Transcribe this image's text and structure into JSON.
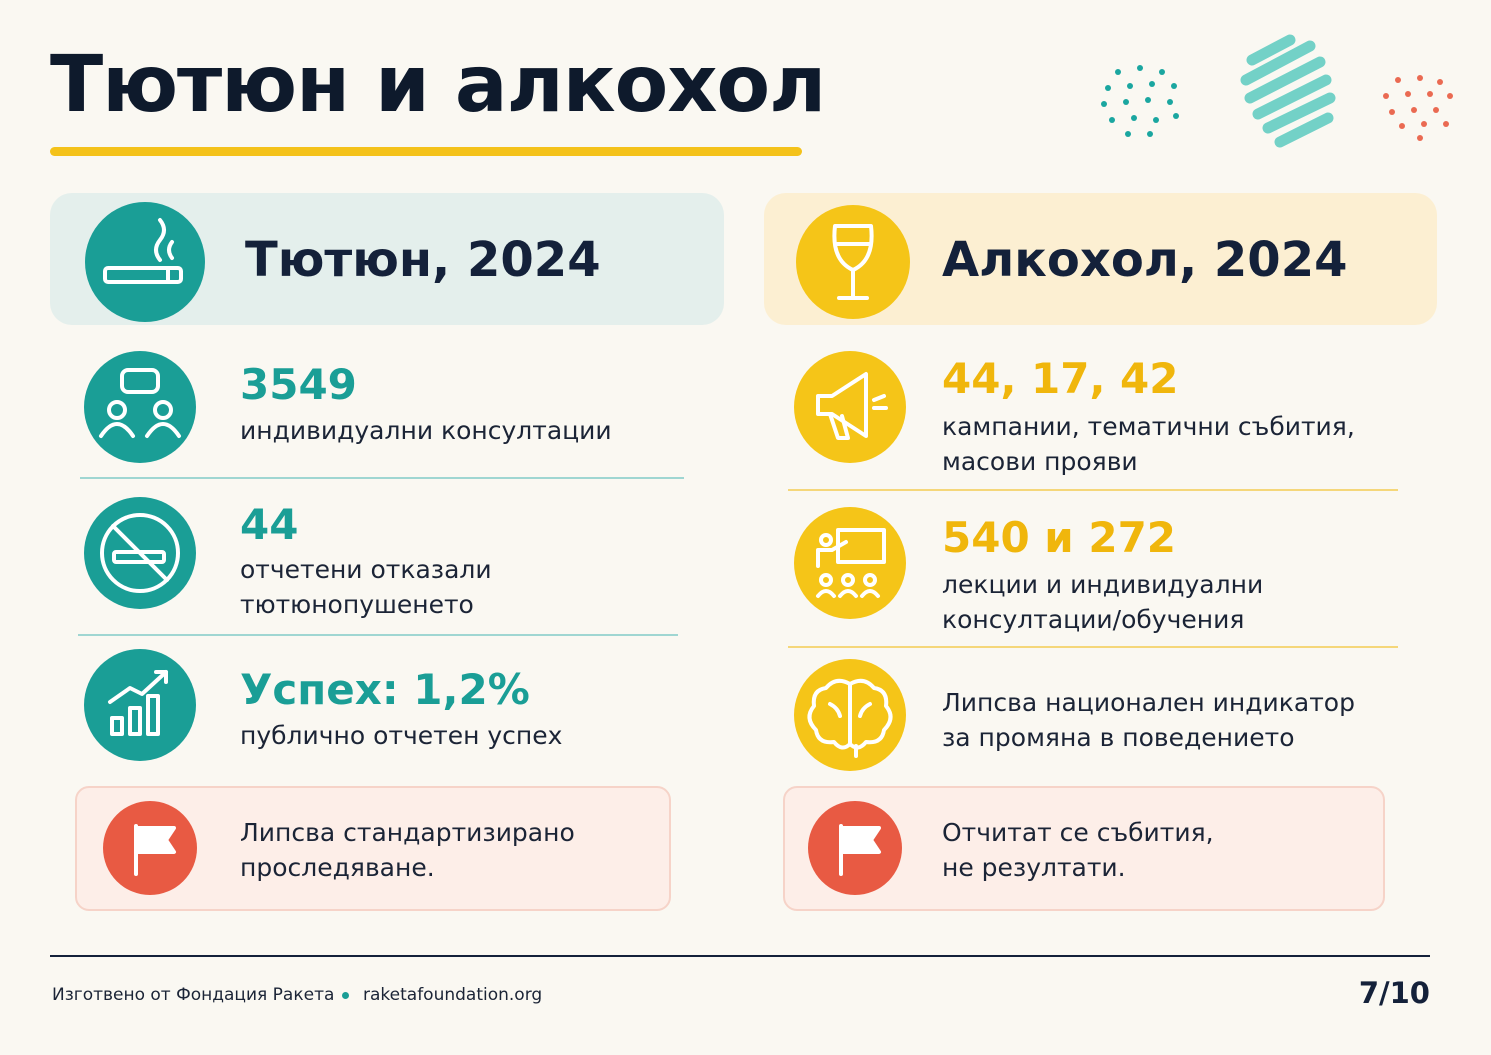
{
  "header": {
    "title": "Тютюн и алкохол"
  },
  "tobacco": {
    "heading": "Тютюн, 2024",
    "items": [
      {
        "value": "3549",
        "lines": [
          "индивидуални консултации"
        ]
      },
      {
        "value": "44",
        "lines": [
          "отчетени отказали",
          "тютюнопушенето"
        ]
      },
      {
        "value": "Успех: 1,2%",
        "lines": [
          "публично отчетен успех"
        ]
      }
    ],
    "note": [
      "Липсва стандартизирано",
      "проследяване."
    ]
  },
  "alcohol": {
    "heading": "Алкохол, 2024",
    "items": [
      {
        "value": "44, 17, 42",
        "lines": [
          "кампании, тематични събития,",
          "масови прояви"
        ]
      },
      {
        "value": "540 и 272",
        "lines": [
          "лекции и индивидуални",
          "консултации/обучения"
        ]
      },
      {
        "lines": [
          "Липсва национален индикатор",
          "за промяна в поведението"
        ]
      }
    ],
    "note": [
      "Отчитат се събития,",
      "не резултати."
    ]
  },
  "footer": {
    "credit": "Изготвено от Фондация Ракета",
    "site": "raketafoundation.org",
    "page": "7/10"
  }
}
